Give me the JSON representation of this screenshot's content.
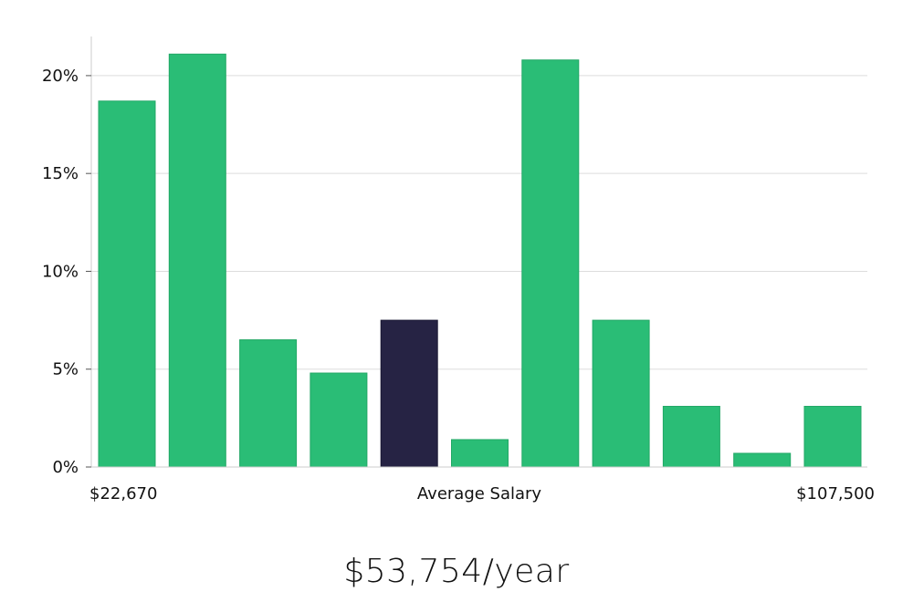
{
  "chart_data": {
    "type": "bar",
    "categories": [
      "1",
      "2",
      "3",
      "4",
      "5",
      "6",
      "7",
      "8",
      "9",
      "10",
      "11"
    ],
    "values": [
      18.7,
      21.1,
      6.5,
      4.8,
      7.5,
      1.4,
      20.8,
      7.5,
      3.1,
      0.7,
      3.1
    ],
    "highlight_index": 4,
    "ylim": [
      0,
      22
    ],
    "yticks": [
      0,
      5,
      10,
      15,
      20
    ],
    "ytick_format": "{v}%",
    "x_min_label": "$22,670",
    "x_center_label": "Average Salary",
    "x_max_label": "$107,500",
    "grid": true,
    "colors": {
      "bar": "#2abd76",
      "highlight": "#262344",
      "grid": "#dddddd",
      "axis": "#cccccc"
    }
  },
  "caption": "$53,754/year"
}
